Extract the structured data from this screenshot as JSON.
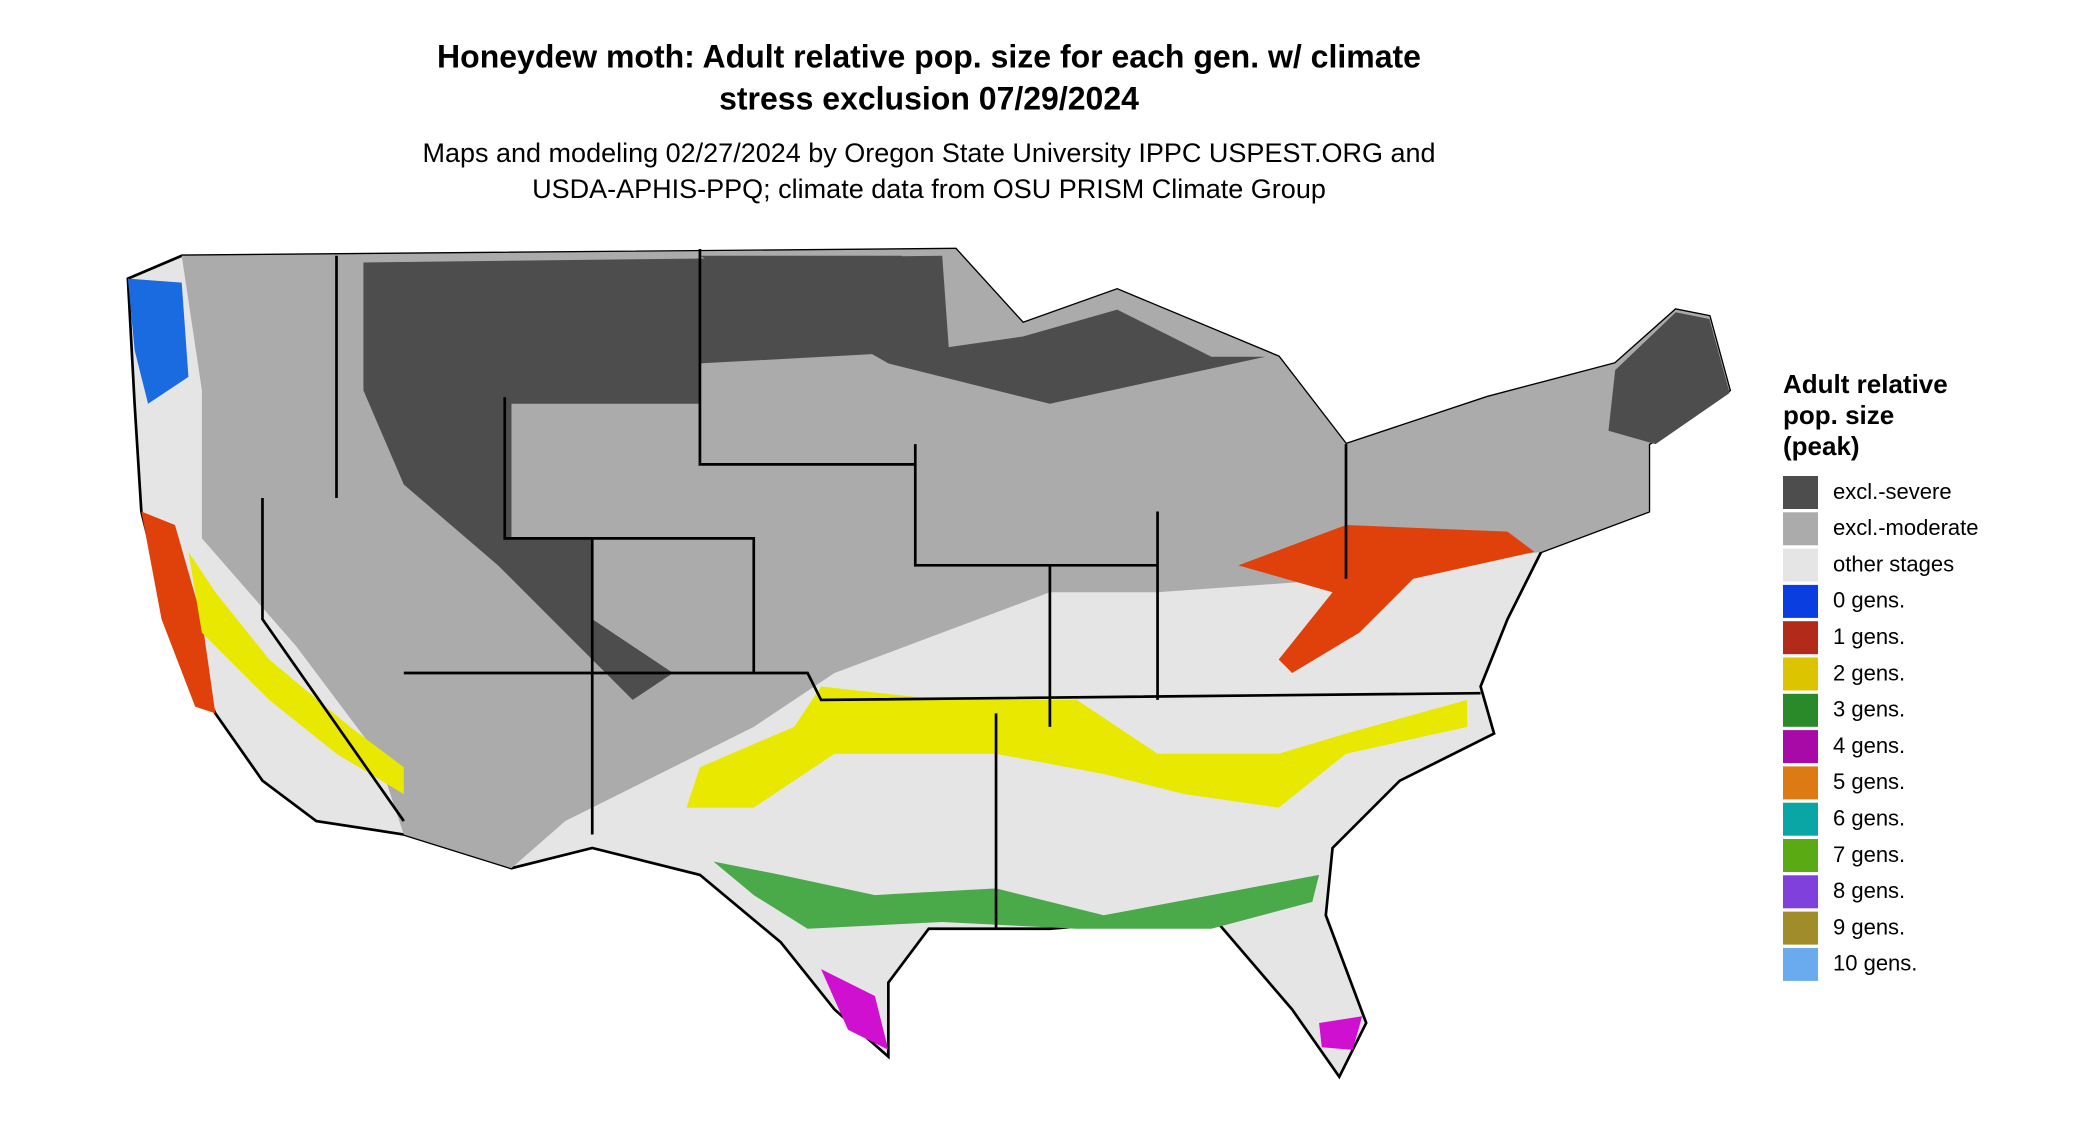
{
  "title": [
    "Honeydew moth: Adult relative pop. size for each gen. w/ climate",
    "stress exclusion 07/29/2024"
  ],
  "subtitle": [
    "Maps and modeling 02/27/2024 by Oregon State University IPPC USPEST.ORG and",
    "USDA-APHIS-PPQ; climate data from OSU PRISM Climate Group"
  ],
  "legend": {
    "title": [
      "Adult relative",
      "pop. size",
      "(peak)"
    ],
    "items": [
      {
        "label": "excl.-severe",
        "color": "#4d4d4d"
      },
      {
        "label": "excl.-moderate",
        "color": "#ababab"
      },
      {
        "label": "other stages",
        "color": "#e5e5e5"
      },
      {
        "label": "0 gens.",
        "color": "#0a3ee0"
      },
      {
        "label": "1 gens.",
        "color": "#b22a1a"
      },
      {
        "label": "2 gens.",
        "color": "#dcc400"
      },
      {
        "label": "3 gens.",
        "color": "#2a8a2a"
      },
      {
        "label": "4 gens.",
        "color": "#a80aa8"
      },
      {
        "label": "5 gens.",
        "color": "#dc7a14"
      },
      {
        "label": "6 gens.",
        "color": "#0aa6a6"
      },
      {
        "label": "7 gens.",
        "color": "#5aaa14"
      },
      {
        "label": "8 gens.",
        "color": "#8040dc"
      },
      {
        "label": "9 gens.",
        "color": "#a08c28"
      },
      {
        "label": "10 gens.",
        "color": "#6aaaee"
      }
    ]
  }
}
